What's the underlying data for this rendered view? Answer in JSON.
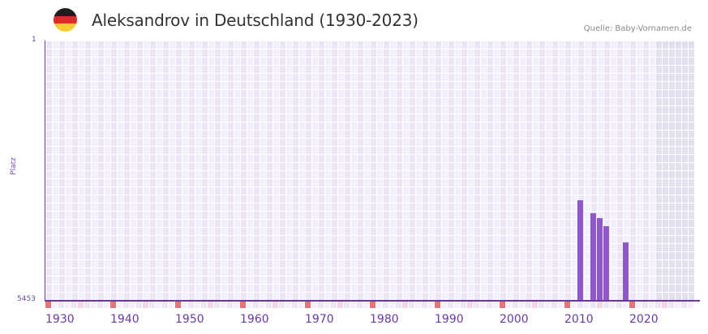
{
  "header": {
    "flag_icon": "germany-flag-icon",
    "flag_colors": [
      "#1d1d1d",
      "#dd2a2a",
      "#f7cb32"
    ],
    "title": "Aleksandrov in Deutschland (1930-2023)",
    "source": "Quelle: Baby-Vornamen.de"
  },
  "axes": {
    "y_top_label": "1",
    "y_bottom_label": "5453",
    "y_title": "Platz",
    "x_ticks": [
      "1930",
      "1940",
      "1950",
      "1960",
      "1970",
      "1980",
      "1990",
      "2000",
      "2010",
      "2020"
    ]
  },
  "colors": {
    "bar": "#8e58c9",
    "axis": "#6a3a9a",
    "grid_light": "#f3f0fb",
    "grid_dark": "#ece6f7",
    "future_shade": "#e3dfee",
    "decade_marker": "#e5737b",
    "half_decade_marker": "#f5d6e0"
  },
  "chart_data": {
    "type": "bar",
    "title": "Aleksandrov in Deutschland (1930-2023)",
    "xlabel": "",
    "ylabel": "Platz",
    "y_inverted": true,
    "ylim": [
      5453,
      1
    ],
    "xlim": [
      1930,
      2029
    ],
    "grid": true,
    "shaded_future_from": 2024,
    "x_tick_labels": [
      "1930",
      "1940",
      "1950",
      "1960",
      "1970",
      "1980",
      "1990",
      "2000",
      "2010",
      "2020"
    ],
    "categories": [
      "2012",
      "2014",
      "2015",
      "2016",
      "2019"
    ],
    "values": [
      3360,
      3630,
      3730,
      3900,
      4240
    ],
    "annotations": [
      "Quelle: Baby-Vornamen.de"
    ]
  }
}
